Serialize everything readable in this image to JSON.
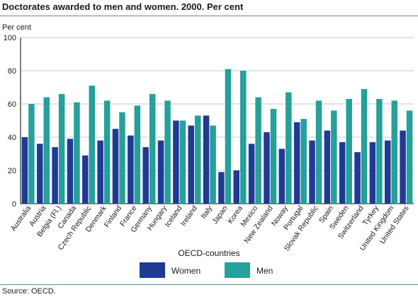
{
  "header": {
    "title": "Doctorates awarded to men and women. 2000. Per cent"
  },
  "footer": {
    "source": "Source: OECD."
  },
  "colors": {
    "women": "#1f3a93",
    "men": "#25a09a",
    "rule": "#5a8f86",
    "grid": "#c8c8c8"
  },
  "chart_data": {
    "type": "bar",
    "title": "Doctorates awarded to men and women. 2000. Per cent",
    "ylabel": "Per cent",
    "xlabel": "OECD-countries",
    "ylim": [
      0,
      100
    ],
    "yticks": [
      0,
      20,
      40,
      60,
      80,
      100
    ],
    "grid": true,
    "legend_title": "OECD-countries",
    "legend_position": "bottom",
    "categories": [
      "Australia",
      "Austria",
      "Belgia (Fl.)",
      "Canada",
      "Czech Republic",
      "Denmark",
      "Finland",
      "France",
      "Germany",
      "Hungary",
      "Iceland",
      "Ireland",
      "Italy",
      "Japan",
      "Korea",
      "Mexico",
      "New Zealand",
      "Noway",
      "Portugal",
      "Slovak Republic",
      "Spain",
      "Sweden",
      "Switzerland",
      "Tyrkey",
      "United Kingdom",
      "United States"
    ],
    "series": [
      {
        "name": "Women",
        "values": [
          40,
          36,
          34,
          39,
          29,
          38,
          45,
          41,
          34,
          38,
          50,
          47,
          53,
          19,
          20,
          36,
          43,
          33,
          49,
          38,
          44,
          37,
          31,
          37,
          38,
          44
        ]
      },
      {
        "name": "Men",
        "values": [
          60,
          64,
          66,
          61,
          71,
          62,
          55,
          59,
          66,
          62,
          50,
          53,
          47,
          81,
          80,
          64,
          57,
          67,
          51,
          62,
          56,
          63,
          69,
          63,
          62,
          56
        ]
      }
    ]
  }
}
